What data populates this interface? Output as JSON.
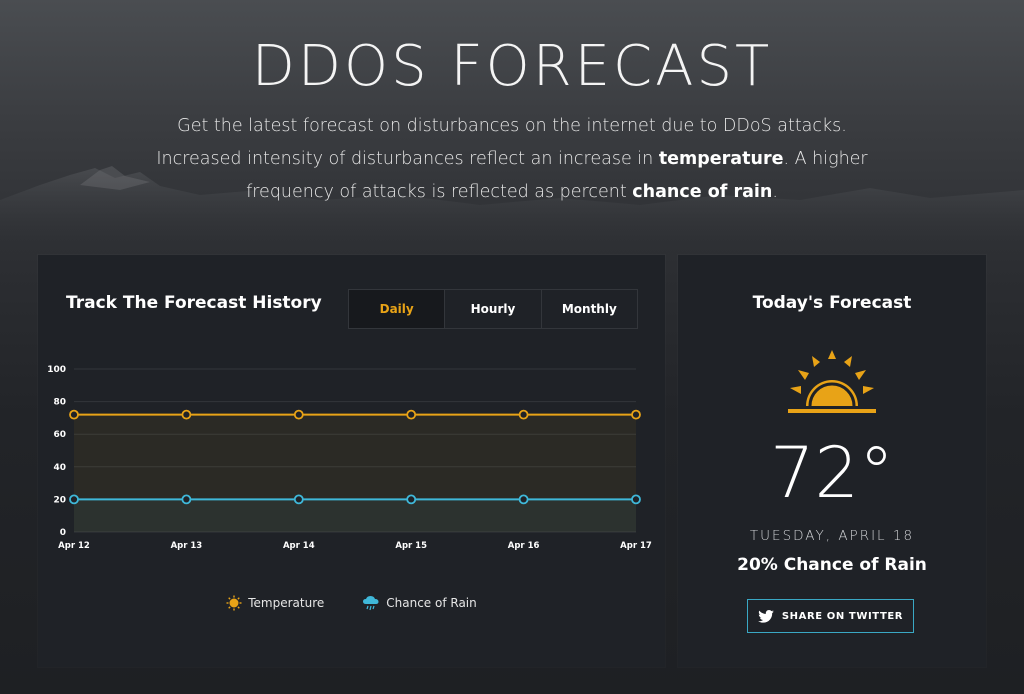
{
  "hero": {
    "title": "DDOS FORECAST",
    "desc_part1": "Get the latest forecast on disturbances on the internet due to DDoS attacks. Increased intensity of disturbances reflect an increase in ",
    "desc_bold1": "temperature",
    "desc_part2": ". A higher frequency of attacks is reflected as percent ",
    "desc_bold2": "chance of rain",
    "desc_part3": "."
  },
  "history": {
    "title": "Track The Forecast History",
    "tabs": [
      {
        "label": "Daily",
        "active": true
      },
      {
        "label": "Hourly",
        "active": false
      },
      {
        "label": "Monthly",
        "active": false
      }
    ],
    "legend": {
      "temperature": "Temperature",
      "rain": "Chance of Rain"
    }
  },
  "today": {
    "title": "Today's Forecast",
    "temperature": "72°",
    "date": "TUESDAY, APRIL 18",
    "rain": "20% Chance of Rain",
    "share_label": "SHARE ON TWITTER"
  },
  "colors": {
    "accent": "#e8a317",
    "rain": "#3fb8d9",
    "panel": "#1f2227"
  },
  "icons": {
    "weather": "sun-icon",
    "share": "twitter-icon",
    "legend_temp": "sun-icon",
    "legend_rain": "rain-cloud-icon"
  },
  "chart_data": {
    "type": "line",
    "categories": [
      "Apr 12",
      "Apr 13",
      "Apr 14",
      "Apr 15",
      "Apr 16",
      "Apr 17"
    ],
    "series": [
      {
        "name": "Temperature",
        "values": [
          72,
          72,
          72,
          72,
          72,
          72
        ],
        "color": "#e8a317"
      },
      {
        "name": "Chance of Rain",
        "values": [
          20,
          20,
          20,
          20,
          20,
          20
        ],
        "color": "#3fb8d9"
      }
    ],
    "ylim": [
      0,
      100
    ],
    "yticks": [
      0,
      20,
      40,
      60,
      80,
      100
    ],
    "grid": true,
    "legend": "bottom"
  }
}
